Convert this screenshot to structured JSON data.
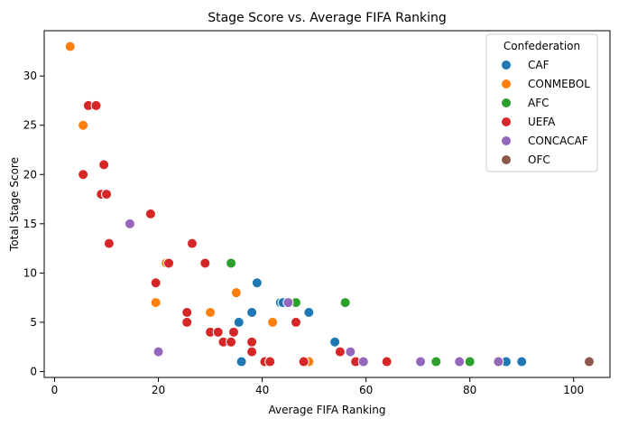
{
  "chart_data": {
    "type": "scatter",
    "title": "Stage Score vs. Average FIFA Ranking",
    "xlabel": "Average FIFA Ranking",
    "ylabel": "Total Stage Score",
    "xlim": [
      -2.0,
      107.0
    ],
    "ylim": [
      -0.6,
      34.6
    ],
    "xticks": [
      0,
      20,
      40,
      60,
      80,
      100
    ],
    "yticks": [
      0,
      5,
      10,
      15,
      20,
      25,
      30
    ],
    "grid": false,
    "legend": {
      "title": "Confederation",
      "placement": "top-right"
    },
    "series": [
      {
        "name": "CAF",
        "color": "#1f77b4",
        "points": [
          [
            36,
            1
          ],
          [
            39,
            9
          ],
          [
            35.5,
            5
          ],
          [
            38,
            6
          ],
          [
            43.5,
            7
          ],
          [
            44,
            7
          ],
          [
            49,
            6
          ],
          [
            54,
            3
          ],
          [
            87,
            1
          ],
          [
            90,
            1
          ]
        ]
      },
      {
        "name": "CONMEBOL",
        "color": "#ff7f0e",
        "points": [
          [
            3,
            33
          ],
          [
            5.5,
            25
          ],
          [
            21.5,
            11
          ],
          [
            19.5,
            7
          ],
          [
            30,
            6
          ],
          [
            35,
            8
          ],
          [
            42,
            5
          ],
          [
            49,
            1
          ]
        ]
      },
      {
        "name": "AFC",
        "color": "#2ca02c",
        "points": [
          [
            34,
            11
          ],
          [
            46.5,
            7
          ],
          [
            56,
            7
          ],
          [
            73.5,
            1
          ],
          [
            80,
            1
          ]
        ]
      },
      {
        "name": "UEFA",
        "color": "#d62728",
        "points": [
          [
            6.5,
            27
          ],
          [
            8,
            27
          ],
          [
            5.5,
            20
          ],
          [
            9.5,
            21
          ],
          [
            9,
            18
          ],
          [
            10,
            18
          ],
          [
            10.5,
            13
          ],
          [
            18.5,
            16
          ],
          [
            19.5,
            9
          ],
          [
            22,
            11
          ],
          [
            26.5,
            13
          ],
          [
            29,
            11
          ],
          [
            25.5,
            6
          ],
          [
            25.5,
            5
          ],
          [
            30,
            4
          ],
          [
            31.5,
            4
          ],
          [
            32.5,
            3
          ],
          [
            34,
            3
          ],
          [
            34.5,
            4
          ],
          [
            38,
            3
          ],
          [
            38,
            2
          ],
          [
            40.5,
            1
          ],
          [
            41.5,
            1
          ],
          [
            46.5,
            5
          ],
          [
            48,
            1
          ],
          [
            55,
            2
          ],
          [
            58,
            1
          ],
          [
            64,
            1
          ]
        ]
      },
      {
        "name": "CONCACAF",
        "color": "#9467bd",
        "points": [
          [
            14.5,
            15
          ],
          [
            20,
            2
          ],
          [
            45,
            7
          ],
          [
            57,
            2
          ],
          [
            59.5,
            1
          ],
          [
            70.5,
            1
          ],
          [
            78,
            1
          ],
          [
            85.5,
            1
          ]
        ]
      },
      {
        "name": "OFC",
        "color": "#8c564b",
        "points": [
          [
            103,
            1
          ]
        ]
      }
    ]
  }
}
